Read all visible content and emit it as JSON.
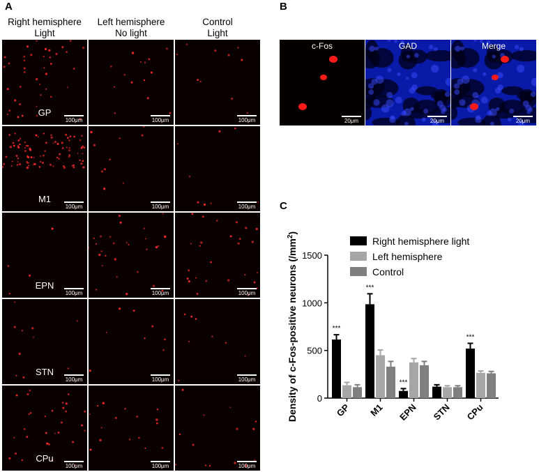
{
  "panel_a": {
    "letter": "A",
    "columns": [
      {
        "line1": "Right hemisphere",
        "line2": "Light"
      },
      {
        "line1": "Left hemisphere",
        "line2": "No light"
      },
      {
        "line1": "Control",
        "line2": "Light"
      }
    ],
    "rows": [
      "GP",
      "M1",
      "EPN",
      "STN",
      "CPu"
    ],
    "scale_label": "100μm"
  },
  "panel_b": {
    "letter": "B",
    "tiles": [
      {
        "label": "c-Fos",
        "color": "#ff2020"
      },
      {
        "label": "GAD",
        "color": "#1a2cff"
      },
      {
        "label": "Merge",
        "color": "#1a2cff"
      }
    ],
    "scale_label": "20μm"
  },
  "panel_c": {
    "letter": "C"
  },
  "chart_data": {
    "type": "bar",
    "categories": [
      "GP",
      "M1",
      "EPN",
      "STN",
      "CPu"
    ],
    "series": [
      {
        "name": "Right hemisphere light",
        "color": "#000000",
        "values": [
          615,
          985,
          75,
          120,
          520
        ],
        "errors": [
          50,
          110,
          25,
          20,
          55
        ]
      },
      {
        "name": "Left hemisphere",
        "color": "#a6a6a6",
        "values": [
          135,
          450,
          375,
          115,
          265
        ],
        "errors": [
          30,
          55,
          40,
          15,
          20
        ]
      },
      {
        "name": "Control",
        "color": "#7f7f7f",
        "values": [
          115,
          330,
          345,
          115,
          260
        ],
        "errors": [
          25,
          55,
          40,
          15,
          20
        ]
      }
    ],
    "significance": [
      "***",
      "***",
      "***",
      "",
      "***"
    ],
    "ylabel": "Density of c-Fos-positive neurons (/mm²)",
    "ylim": [
      0,
      1500
    ],
    "yticks": [
      0,
      500,
      1000,
      1500
    ],
    "legend_position": "top-right",
    "grid": false
  }
}
